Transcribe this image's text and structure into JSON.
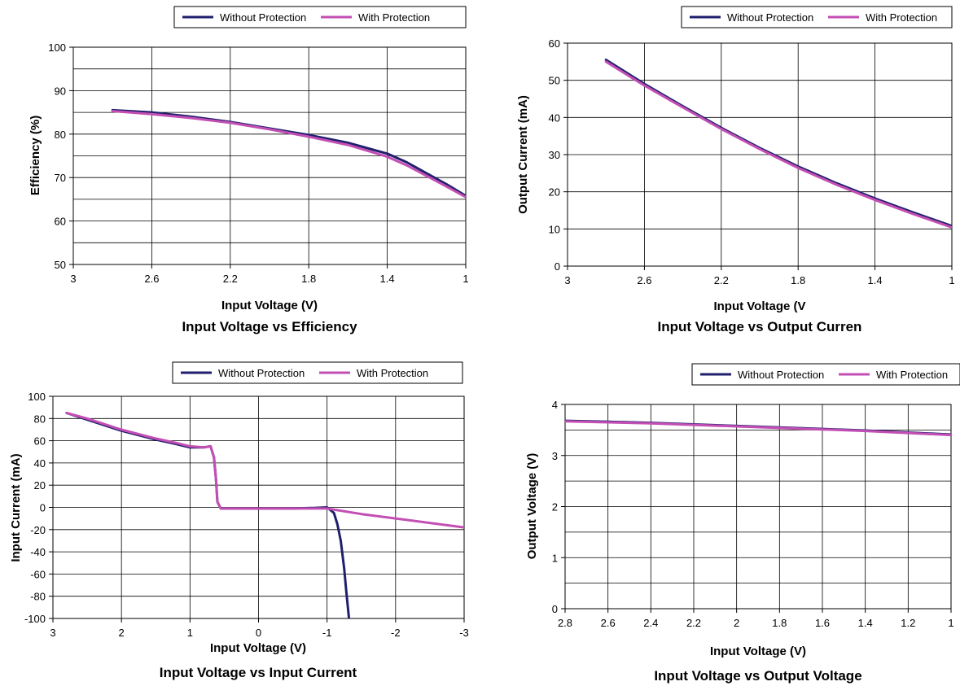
{
  "colors": {
    "without": "#1f1f6e",
    "with": "#c34fb4"
  },
  "chart_data": [
    {
      "type": "line",
      "title": "Input Voltage vs Efficiency",
      "xlabel": "Input Voltage (V)",
      "ylabel": "Efficiency (%)",
      "xlim": [
        3,
        1
      ],
      "ylim": [
        50,
        100
      ],
      "xticks": [
        3,
        2.6,
        2.2,
        1.8,
        1.4,
        1
      ],
      "xtick_labels": [
        "3",
        "2.6",
        "2.2",
        "1.8",
        "1.4",
        "1"
      ],
      "yticks": [
        50,
        60,
        70,
        80,
        90,
        100
      ],
      "ytick_labels": [
        "50",
        "60",
        "70",
        "80",
        "90",
        "100"
      ],
      "minor_ygrid": [
        55,
        65,
        75,
        85,
        95
      ],
      "grid": true,
      "legend": [
        "Without Protection",
        "With Protection"
      ],
      "series": [
        {
          "name": "Without Protection",
          "x": [
            2.8,
            2.6,
            2.4,
            2.2,
            2.0,
            1.8,
            1.6,
            1.4,
            1.3,
            1.2,
            1.1,
            1.0
          ],
          "y": [
            85.5,
            85.0,
            84.0,
            82.8,
            81.3,
            79.8,
            78.0,
            75.5,
            73.5,
            71.0,
            68.5,
            65.8
          ]
        },
        {
          "name": "With Protection",
          "x": [
            2.8,
            2.6,
            2.4,
            2.2,
            2.0,
            1.8,
            1.6,
            1.4,
            1.3,
            1.2,
            1.1,
            1.0
          ],
          "y": [
            85.3,
            84.6,
            83.7,
            82.6,
            81.1,
            79.4,
            77.5,
            74.8,
            72.8,
            70.4,
            68.0,
            65.5
          ]
        }
      ]
    },
    {
      "type": "line",
      "title": "Input Voltage vs Output Curren",
      "xlabel": "Input Voltage (V",
      "ylabel": "Output Current (mA)",
      "xlim": [
        3,
        1
      ],
      "ylim": [
        0,
        60
      ],
      "xticks": [
        3,
        2.6,
        2.2,
        1.8,
        1.4,
        1
      ],
      "xtick_labels": [
        "3",
        "2.6",
        "2.2",
        "1.8",
        "1.4",
        "1"
      ],
      "yticks": [
        0,
        10,
        20,
        30,
        40,
        50,
        60
      ],
      "ytick_labels": [
        "0",
        "10",
        "20",
        "30",
        "40",
        "50",
        "60"
      ],
      "minor_ygrid": [],
      "grid": true,
      "legend": [
        "Without Protection",
        "With Protection"
      ],
      "series": [
        {
          "name": "Without Protection",
          "x": [
            2.8,
            2.6,
            2.4,
            2.2,
            2.0,
            1.8,
            1.6,
            1.4,
            1.2,
            1.0
          ],
          "y": [
            55.5,
            49.0,
            43.0,
            37.2,
            31.8,
            26.8,
            22.3,
            18.2,
            14.4,
            10.8
          ]
        },
        {
          "name": "With Protection",
          "x": [
            2.8,
            2.6,
            2.4,
            2.2,
            2.0,
            1.8,
            1.6,
            1.4,
            1.2,
            1.0
          ],
          "y": [
            55.0,
            48.6,
            42.7,
            36.9,
            31.5,
            26.4,
            21.9,
            17.8,
            14.0,
            10.4
          ]
        }
      ]
    },
    {
      "type": "line",
      "title": "Input Voltage vs Input Current",
      "xlabel": "Input Voltage (V)",
      "ylabel": "Input Current (mA)",
      "xlim": [
        3,
        -3
      ],
      "ylim": [
        -100,
        100
      ],
      "xticks": [
        3,
        2,
        1,
        0,
        -1,
        -2,
        -3
      ],
      "xtick_labels": [
        "3",
        "2",
        "1",
        "0",
        "-1",
        "-2",
        "-3"
      ],
      "yticks": [
        -100,
        -80,
        -60,
        -40,
        -20,
        0,
        20,
        40,
        60,
        80,
        100
      ],
      "ytick_labels": [
        "-100",
        "-80",
        "-60",
        "-40",
        "-20",
        "0",
        "20",
        "40",
        "60",
        "80",
        "100"
      ],
      "minor_ygrid": [],
      "grid": true,
      "legend": [
        "Without Protection",
        "With Protection"
      ],
      "series": [
        {
          "name": "Without Protection",
          "x": [
            2.8,
            2.5,
            2.0,
            1.5,
            1.2,
            1.0,
            0.8,
            0.7,
            0.65,
            0.62,
            0.6,
            0.55,
            0.4,
            0,
            -0.5,
            -0.8,
            -1.0,
            -1.1,
            -1.15,
            -1.2,
            -1.25,
            -1.28,
            -1.32
          ],
          "y": [
            85,
            79,
            69,
            61,
            57,
            54,
            54,
            55,
            45,
            25,
            5,
            -1,
            -1,
            -1,
            -1,
            -0.5,
            0,
            -5,
            -15,
            -30,
            -55,
            -75,
            -100
          ]
        },
        {
          "name": "With Protection",
          "x": [
            2.8,
            2.5,
            2.0,
            1.5,
            1.2,
            1.0,
            0.8,
            0.7,
            0.65,
            0.62,
            0.6,
            0.55,
            0.4,
            0,
            -0.5,
            -1.0,
            -1.5,
            -2.0,
            -2.5,
            -3.0
          ],
          "y": [
            85,
            80,
            70,
            62,
            58,
            55,
            54,
            55,
            45,
            25,
            5,
            -1,
            -1,
            -1,
            -1,
            -1,
            -6,
            -10,
            -14,
            -18
          ]
        }
      ]
    },
    {
      "type": "line",
      "title": "Input Voltage vs Output Voltage",
      "xlabel": "Input Voltage (V)",
      "ylabel": "Output Voltage (V)",
      "xlim": [
        2.8,
        1
      ],
      "ylim": [
        0,
        4
      ],
      "xticks": [
        2.8,
        2.6,
        2.4,
        2.2,
        2.0,
        1.8,
        1.6,
        1.4,
        1.2,
        1.0
      ],
      "xtick_labels": [
        "2.8",
        "2.6",
        "2.4",
        "2.2",
        "2",
        "1.8",
        "1.6",
        "1.4",
        "1.2",
        "1"
      ],
      "yticks": [
        0,
        1,
        2,
        3,
        4
      ],
      "ytick_labels": [
        "0",
        "1",
        "2",
        "3",
        "4"
      ],
      "minor_ygrid": [
        0.5,
        1.5,
        2.5,
        3.5
      ],
      "grid": true,
      "legend": [
        "Without Protection",
        "With Protection"
      ],
      "series": [
        {
          "name": "Without Protection",
          "x": [
            2.8,
            2.6,
            2.4,
            2.2,
            2.0,
            1.8,
            1.6,
            1.4,
            1.2,
            1.0
          ],
          "y": [
            3.68,
            3.66,
            3.64,
            3.61,
            3.58,
            3.55,
            3.52,
            3.49,
            3.45,
            3.41
          ]
        },
        {
          "name": "With Protection",
          "x": [
            2.8,
            2.6,
            2.4,
            2.2,
            2.0,
            1.8,
            1.6,
            1.4,
            1.2,
            1.0
          ],
          "y": [
            3.67,
            3.65,
            3.63,
            3.6,
            3.57,
            3.54,
            3.51,
            3.48,
            3.44,
            3.4
          ]
        }
      ]
    }
  ]
}
